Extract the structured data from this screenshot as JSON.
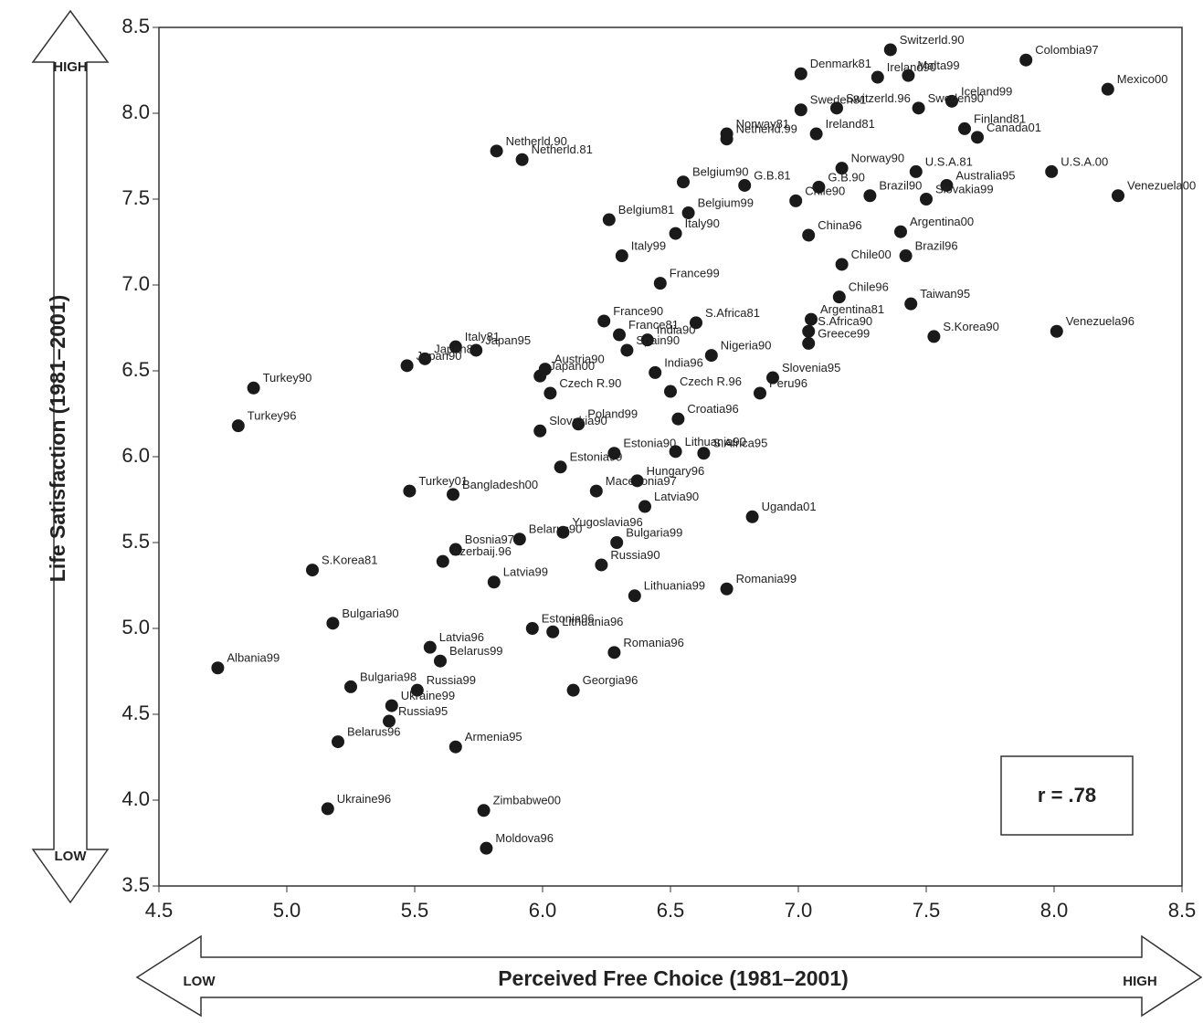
{
  "chart_data": {
    "type": "scatter",
    "x_label": "Perceived Free Choice (1981–2001)",
    "y_label": "Life Satisfaction (1981–2001)",
    "x_low": "LOW",
    "x_high": "HIGH",
    "y_low": "LOW",
    "y_high": "HIGH",
    "annotation": "r = .78",
    "color": "#1a1a1a",
    "xlim": [
      4.5,
      8.5
    ],
    "ylim": [
      3.5,
      8.5
    ],
    "xticks": [
      4.5,
      {
        "value": 5,
        "label": "5.0"
      },
      5.5,
      {
        "value": 6,
        "label": "6.0"
      },
      6.5,
      {
        "value": 7,
        "label": "7.0"
      },
      7.5,
      {
        "value": 8,
        "label": "8.0"
      },
      8.5
    ],
    "yticks": [
      3.5,
      {
        "value": 4,
        "label": "4.0"
      },
      4.5,
      {
        "value": 5,
        "label": "5.0"
      },
      5.5,
      {
        "value": 6,
        "label": "6.0"
      },
      6.5,
      {
        "value": 7,
        "label": "7.0"
      },
      7.5,
      {
        "value": 8,
        "label": "8.0"
      },
      8.5
    ],
    "labels": [
      "Colombia97",
      "Mexico00",
      "Venezuela00",
      "U.S.A.00",
      "Venezuela96",
      "S.Korea90",
      "Taiwan95",
      "Denmark81",
      "Switzerld.90",
      "Malta99",
      "Iceland99",
      "Canada01",
      "Finland81",
      "Australia95",
      "Netherld.90",
      "Netherld.81",
      "Norway81",
      "Sweden81",
      "Belgium90",
      "G.B.81",
      "Belgium81",
      "Italy99",
      "France99",
      "France90",
      "Italy81",
      "Japan81",
      "Japan90",
      "Japan95",
      "Turkey90",
      "Turkey96",
      "Austria90",
      "Japan00",
      "Czech R.90",
      "Poland99",
      "Slovakia90",
      "Estonia99",
      "Turkey01",
      "Bangladesh00",
      "Macedonia97",
      "Bosnia97",
      "Belarus90",
      "Yugoslavia96",
      "Bulgaria99",
      "Latvia90",
      "Uganda01",
      "S.Korea81",
      "Azerbaij.96",
      "Latvia99",
      "Russia90",
      "Estonia96",
      "Lithuania96",
      "Lithuania99",
      "Romania99",
      "Romania96",
      "Bulgaria90",
      "Latvia96",
      "Belarus99",
      "Albania99",
      "Georgia96",
      "Russia99",
      "Bulgaria98",
      "Ukraine99",
      "Russia95",
      "Belarus96",
      "Armenia95",
      "Zimbabwe00",
      "Ukraine96",
      "Moldova96",
      "Estonia90",
      "Hungary96",
      "Croatia96",
      "S.Africa95",
      "Lithuania90",
      "Peru96",
      "Slovenia95",
      "Czech R.96",
      "India96",
      "India90",
      "France81",
      "Spain90",
      "S.Africa81",
      "Nigeria90",
      "Argentina81",
      "S.Africa90",
      "Greece99",
      "Chile96",
      "Chile00",
      "Brazil96",
      "Argentina00",
      "China96",
      "Brazil90",
      "Slovakia99",
      "Chile90",
      "G.B.90",
      "U.S.A.81",
      "Norway90",
      "Ireland81",
      "Belgium99",
      "Italy90",
      "Netherld.99",
      "Ireland90",
      "Switzerld.96",
      "Sweden90"
    ],
    "x": [
      7.89,
      8.21,
      8.25,
      7.99,
      8.01,
      7.53,
      7.44,
      7.01,
      7.36,
      7.43,
      7.6,
      7.7,
      7.65,
      7.58,
      5.82,
      5.92,
      6.72,
      7.01,
      6.55,
      6.79,
      6.26,
      6.31,
      6.46,
      6.24,
      5.66,
      5.54,
      5.47,
      5.74,
      4.87,
      4.81,
      6.01,
      5.99,
      6.03,
      6.14,
      5.99,
      6.07,
      5.48,
      5.65,
      6.21,
      5.66,
      5.91,
      6.08,
      6.29,
      6.4,
      6.82,
      5.1,
      5.61,
      5.81,
      6.23,
      5.96,
      6.04,
      6.36,
      6.72,
      6.28,
      5.18,
      5.56,
      5.6,
      4.73,
      6.12,
      5.51,
      5.25,
      5.41,
      5.4,
      5.2,
      5.66,
      5.77,
      5.16,
      5.78,
      6.28,
      6.37,
      6.53,
      6.63,
      6.52,
      6.85,
      6.9,
      6.5,
      6.44,
      6.41,
      6.3,
      6.33,
      6.6,
      6.66,
      7.05,
      7.04,
      7.04,
      7.16,
      7.17,
      7.42,
      7.4,
      7.04,
      7.28,
      7.5,
      6.99,
      7.08,
      7.46,
      7.17,
      7.07,
      6.57,
      6.52,
      6.72,
      7.31,
      7.15,
      7.47
    ],
    "values": [
      8.31,
      8.14,
      7.52,
      7.66,
      6.73,
      6.7,
      6.89,
      8.23,
      8.37,
      8.22,
      8.07,
      7.86,
      7.91,
      7.58,
      7.78,
      7.73,
      7.88,
      8.02,
      7.6,
      7.58,
      7.38,
      7.17,
      7.01,
      6.79,
      6.64,
      6.57,
      6.53,
      6.62,
      6.4,
      6.18,
      6.51,
      6.47,
      6.37,
      6.19,
      6.15,
      5.94,
      5.8,
      5.78,
      5.8,
      5.46,
      5.52,
      5.56,
      5.5,
      5.71,
      5.65,
      5.34,
      5.39,
      5.27,
      5.37,
      5.0,
      4.98,
      5.19,
      5.23,
      4.86,
      5.03,
      4.89,
      4.81,
      4.77,
      4.64,
      4.64,
      4.66,
      4.55,
      4.46,
      4.34,
      4.31,
      3.94,
      3.95,
      3.72,
      6.02,
      5.86,
      6.22,
      6.02,
      6.03,
      6.37,
      6.46,
      6.38,
      6.49,
      6.68,
      6.71,
      6.62,
      6.78,
      6.59,
      6.8,
      6.73,
      6.66,
      6.93,
      7.12,
      7.17,
      7.31,
      7.29,
      7.52,
      7.5,
      7.49,
      7.57,
      7.66,
      7.68,
      7.88,
      7.42,
      7.3,
      7.85,
      8.21,
      8.03,
      8.03
    ]
  }
}
